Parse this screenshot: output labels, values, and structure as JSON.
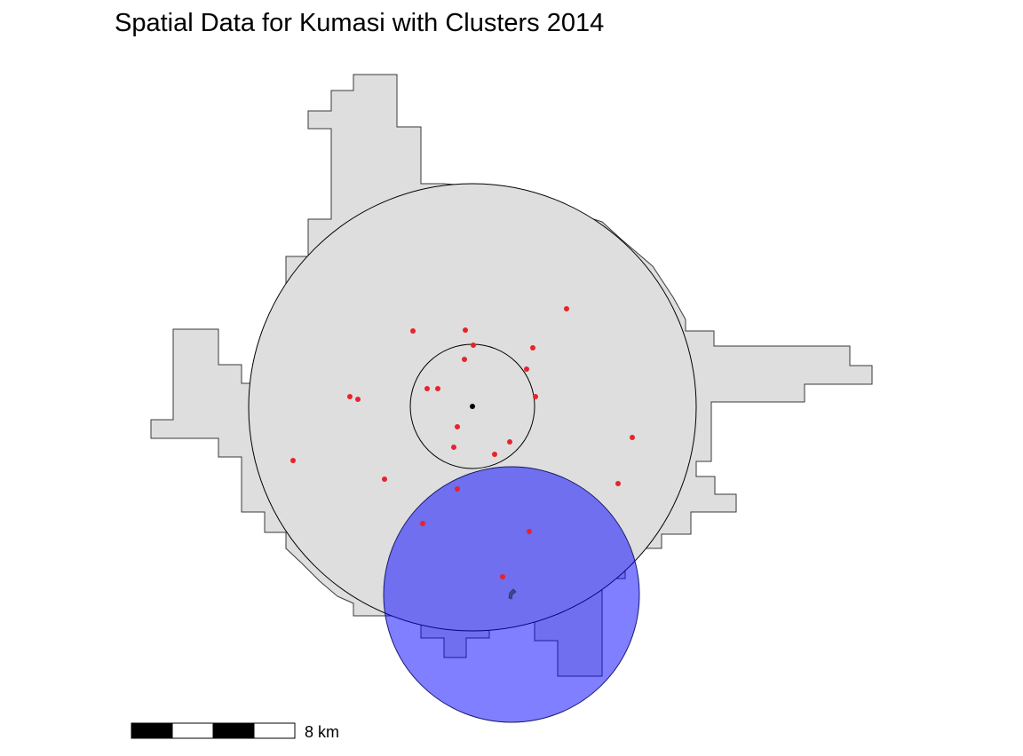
{
  "title": "Spatial Data for Kumasi with Clusters 2014",
  "scale_bar": {
    "label": "8 km",
    "segments": 4
  },
  "colors": {
    "land_fill": "#dedede",
    "land_stroke": "#3a3a3a",
    "buffer_blue": "#0000ff",
    "points": "#e8232b",
    "center_point": "#000000"
  }
}
